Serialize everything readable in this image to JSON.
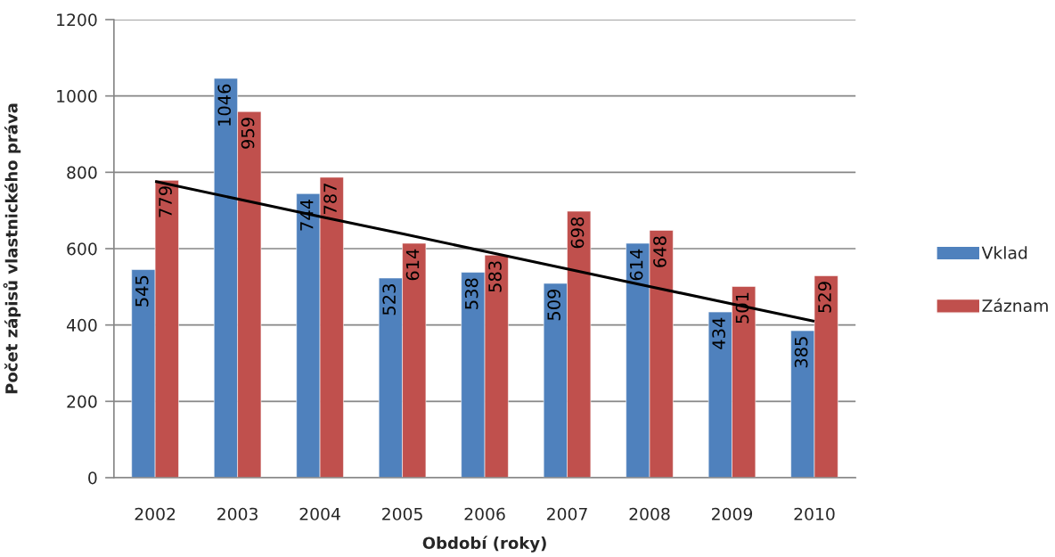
{
  "chart_data": {
    "type": "bar",
    "xlabel": "Období (roky)",
    "ylabel": "Počet zápisů vlastnického práva",
    "categories": [
      "2002",
      "2003",
      "2004",
      "2005",
      "2006",
      "2007",
      "2008",
      "2009",
      "2010"
    ],
    "series": [
      {
        "name": "Vklad",
        "color": "#4f81bd",
        "values": [
          545,
          1046,
          744,
          523,
          538,
          509,
          614,
          434,
          385
        ],
        "value_labels": [
          "545",
          "1046",
          "744",
          "523",
          "538",
          "509",
          "614",
          "434",
          "385"
        ]
      },
      {
        "name": "Záznam",
        "color": "#c0504d",
        "values": [
          779,
          959,
          787,
          614,
          583,
          698,
          648,
          501,
          529
        ],
        "value_labels": [
          "779",
          "959",
          "787",
          "614",
          "583",
          "698",
          "648",
          "501",
          "529"
        ]
      },
      {
        "type": "line",
        "color": "#000000",
        "values": [
          776,
          730,
          684,
          639,
          593,
          547,
          501,
          455,
          410
        ]
      }
    ],
    "ylim": [
      0,
      1200
    ],
    "yticks": [
      0,
      200,
      400,
      600,
      800,
      1000,
      1200
    ],
    "grid": "y",
    "legend": "right"
  }
}
